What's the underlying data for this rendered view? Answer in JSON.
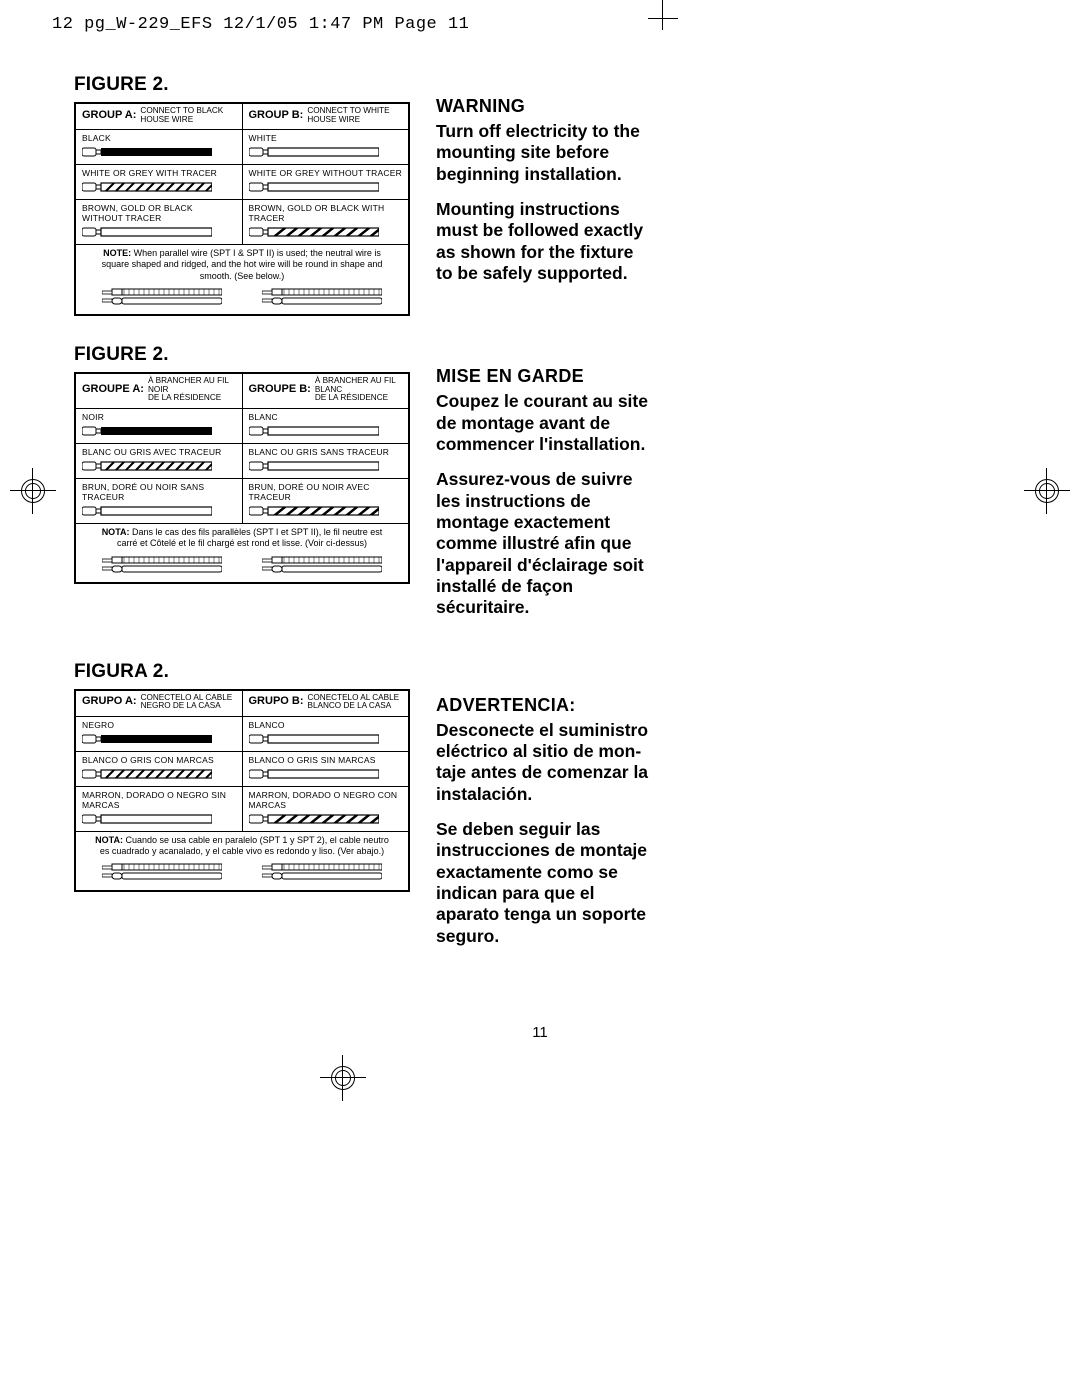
{
  "slug": "12 pg_W-229_EFS  12/1/05  1:47 PM  Page 11",
  "page_number": "11",
  "colors": {
    "text": "#000000",
    "bg": "#ffffff",
    "black_wire": "#000000",
    "hatch": "#000000"
  },
  "sections": [
    {
      "title": "FIGURE 2.",
      "groupA_name": "GROUP A:",
      "groupA_desc": "CONNECT TO BLACK\nHOUSE WIRE",
      "groupB_name": "GROUP B:",
      "groupB_desc": "CONNECT TO WHITE\nHOUSE WIRE",
      "rowA1": "BLACK",
      "rowB1": "WHITE",
      "rowA2": "WHITE OR GREY WITH TRACER",
      "rowB2": "WHITE OR GREY WITHOUT TRACER",
      "rowA3": "BROWN, GOLD OR BLACK\nWITHOUT TRACER",
      "rowB3": "BROWN, GOLD OR BLACK WITH TRACER",
      "note_label": "NOTE:",
      "note_text": " When parallel wire (SPT I & SPT II) is used; the neutral wire is square shaped and ridged, and the hot wire will be round in shape and smooth. (See below.)",
      "warn_head": "WARNING",
      "warn_p1": "Turn off electricity to the mounting site before beginning installation.",
      "warn_p2": "Mounting instructions must be followed exactly as shown for the fixture to be safely supported."
    },
    {
      "title": "FIGURE 2.",
      "groupA_name": "GROUPE A:",
      "groupA_desc": "À BRANCHER AU FIL NOIR\nDE LA RÉSIDENCE",
      "groupB_name": "GROUPE B:",
      "groupB_desc": "À BRANCHER AU FIL BLANC\nDE LA RÉSIDENCE",
      "rowA1": "NOIR",
      "rowB1": "BLANC",
      "rowA2": "BLANC OU GRIS AVEC TRACEUR",
      "rowB2": "BLANC OU GRIS SANS TRACEUR",
      "rowA3": "BRUN, DORÉ OU NOIR SANS TRACEUR",
      "rowB3": "BRUN, DORÉ OU NOIR AVEC TRACEUR",
      "note_label": "NOTA:",
      "note_text": " Dans le cas des fils parallèles (SPT I et SPT II), le fil neutre est carré et Côtelé et le fil chargé est rond et lisse. (Voir ci-dessus)",
      "warn_head": "MISE EN GARDE",
      "warn_p1": "Coupez le courant au site de montage avant de commencer l'installation.",
      "warn_p2": "Assurez-vous de suivre les instructions de montage exactement comme illustré afin que l'appareil d'éclairage soit installé de façon sécuritaire."
    },
    {
      "title": "FIGURA 2.",
      "groupA_name": "GRUPO A:",
      "groupA_desc": "CONECTELO AL CABLE\nNEGRO DE LA CASA",
      "groupB_name": "GRUPO B:",
      "groupB_desc": "CONECTELO AL CABLE\nBLANCO DE LA CASA",
      "rowA1": "NEGRO",
      "rowB1": "BLANCO",
      "rowA2": "BLANCO O GRIS CON MARCAS",
      "rowB2": "BLANCO O GRIS SIN MARCAS",
      "rowA3": "MARRON, DORADO O NEGRO SIN MARCAS",
      "rowB3": "MARRON, DORADO O NEGRO CON MARCAS",
      "note_label": "NOTA:",
      "note_text": " Cuando se usa cable en paralelo (SPT 1 y SPT 2), el cable neutro es cuadrado y acanalado, y el cable vivo es redondo y liso. (Ver abajo.)",
      "warn_head": "ADVERTENCIA:",
      "warn_p1": "Desconecte el suministro eléctrico al sitio de mon-taje antes de comenzar la instalación.",
      "warn_p2": "Se deben seguir las instrucciones de montaje exactamente como se indican para que el aparato tenga un soporte seguro."
    }
  ],
  "wire_styles": {
    "black": "solid_black",
    "white": "outline",
    "tracer": "outline_with_hatch",
    "plain": "outline",
    "brown_tracer": "outline_with_black_hatch"
  }
}
